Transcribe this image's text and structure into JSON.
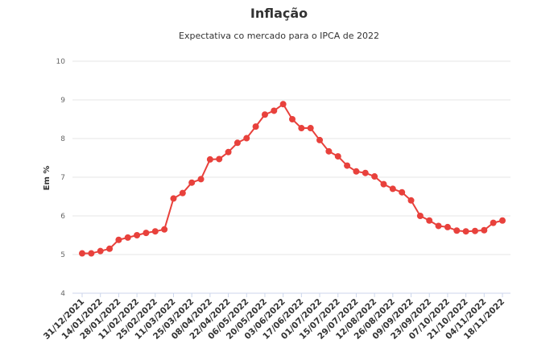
{
  "chart_data": {
    "type": "line",
    "title": "Inflação",
    "subtitle": "Expectativa co mercado para o IPCA de 2022",
    "ylabel": "Em %",
    "xlabel": "",
    "ylim": [
      4,
      10
    ],
    "yticks": [
      "4",
      "5",
      "6",
      "7",
      "8",
      "9",
      "10"
    ],
    "grid": true,
    "legend": "none",
    "line_color": "#e8413c",
    "x_tick_labels": [
      "31/12/2021",
      "14/01/2022",
      "28/01/2022",
      "11/02/2022",
      "25/02/2022",
      "11/03/2022",
      "25/03/2022",
      "08/04/2022",
      "22/04/2022",
      "06/05/2022",
      "20/05/2022",
      "03/06/2022",
      "17/06/2022",
      "01/07/2022",
      "15/07/2022",
      "29/07/2022",
      "12/08/2022",
      "26/08/2022",
      "09/09/2022",
      "23/09/2022",
      "07/10/2022",
      "21/10/2022",
      "04/11/2022",
      "18/11/2022"
    ],
    "series": [
      {
        "values": [
          5.03,
          5.03,
          5.09,
          5.15,
          5.38,
          5.44,
          5.5,
          5.56,
          5.6,
          5.65,
          6.45,
          6.59,
          6.86,
          6.95,
          7.46,
          7.47,
          7.65,
          7.89,
          8.01,
          8.31,
          8.62,
          8.72,
          8.89,
          8.5,
          8.27,
          8.27,
          7.96,
          7.67,
          7.54,
          7.3,
          7.15,
          7.11,
          7.02,
          6.82,
          6.7,
          6.61,
          6.4,
          6.0,
          5.88,
          5.74,
          5.71,
          5.62,
          5.6,
          5.61,
          5.63,
          5.82,
          5.88
        ]
      }
    ]
  }
}
